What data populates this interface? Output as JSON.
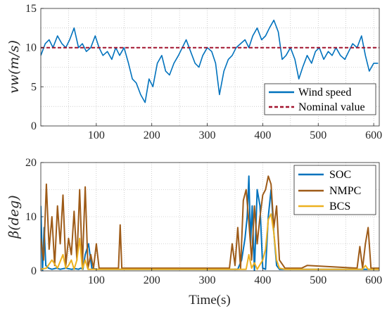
{
  "chart_data": [
    {
      "type": "line",
      "ylabel": "v_w(m/s)",
      "ylabel_text": "vw(m/s)",
      "xlabel": "",
      "xlim": [
        0,
        610
      ],
      "ylim": [
        0,
        15
      ],
      "xticks": [
        "100",
        "200",
        "300",
        "400",
        "500",
        "600"
      ],
      "yticks": [
        "0",
        "5",
        "10",
        "15"
      ],
      "grid": true,
      "legend_position": "bottom-right",
      "series": [
        {
          "name": "Wind speed",
          "color": "#0072BD",
          "style": "solid",
          "x": [
            0,
            8,
            15,
            22,
            30,
            38,
            45,
            52,
            60,
            68,
            75,
            82,
            90,
            98,
            105,
            112,
            120,
            128,
            135,
            142,
            150,
            158,
            165,
            172,
            180,
            188,
            195,
            202,
            210,
            218,
            225,
            232,
            240,
            248,
            255,
            262,
            270,
            278,
            285,
            292,
            300,
            308,
            315,
            322,
            330,
            338,
            345,
            352,
            360,
            368,
            375,
            382,
            390,
            398,
            405,
            412,
            420,
            428,
            435,
            442,
            450,
            458,
            465,
            472,
            480,
            488,
            495,
            502,
            510,
            518,
            525,
            532,
            540,
            548,
            555,
            562,
            570,
            578,
            585,
            592,
            600,
            608
          ],
          "y": [
            9,
            10.5,
            11,
            10,
            11.5,
            10.5,
            10,
            11,
            12.5,
            10,
            10.5,
            9.5,
            10,
            11.5,
            10,
            9,
            9.5,
            8.5,
            10,
            9,
            10,
            8,
            6,
            5.5,
            4,
            3,
            6,
            5,
            8,
            9,
            7,
            6.5,
            8,
            9,
            10,
            11,
            9.5,
            8,
            7.5,
            9,
            10,
            9.5,
            8,
            4,
            7,
            8.5,
            9,
            10,
            10.5,
            11,
            10,
            11.5,
            12.5,
            11,
            11.5,
            12.5,
            13.5,
            12,
            8.5,
            9,
            10,
            8.5,
            6,
            7.5,
            9,
            8,
            9.5,
            10,
            8.5,
            9.5,
            9,
            10,
            9,
            8.5,
            9.5,
            10.5,
            10,
            11.5,
            9,
            7,
            8,
            8
          ]
        },
        {
          "name": "Nominal value",
          "color": "#A2142F",
          "style": "dashed",
          "x": [
            0,
            610
          ],
          "y": [
            10,
            10
          ]
        }
      ]
    },
    {
      "type": "line",
      "ylabel": "β(deg)",
      "xlabel": "Time(s)",
      "xlim": [
        0,
        610
      ],
      "ylim": [
        0,
        20
      ],
      "xticks": [
        "100",
        "200",
        "300",
        "400",
        "500",
        "600"
      ],
      "yticks": [
        "0",
        "10",
        "20"
      ],
      "grid": true,
      "legend_position": "top-right",
      "series": [
        {
          "name": "SOC",
          "color": "#0072BD",
          "x": [
            0,
            3,
            6,
            9,
            14,
            20,
            28,
            35,
            45,
            55,
            62,
            68,
            72,
            76,
            80,
            86,
            92,
            100,
            110,
            140,
            145,
            150,
            200,
            300,
            355,
            362,
            368,
            372,
            375,
            378,
            381,
            385,
            390,
            395,
            400,
            405,
            410,
            415,
            420,
            425,
            430,
            440,
            480,
            570,
            590,
            610
          ],
          "y": [
            12,
            0,
            8,
            1,
            0.5,
            0.3,
            0.5,
            0.3,
            0.5,
            0.3,
            0.4,
            0.3,
            0.5,
            0.3,
            3,
            5,
            0.5,
            0.3,
            0.3,
            0.3,
            0.3,
            0.3,
            0.3,
            0.3,
            0.3,
            2,
            6,
            10,
            17.5,
            5,
            12,
            0,
            15,
            12,
            0.5,
            0.3,
            10,
            15,
            7,
            1,
            0.3,
            0.3,
            0.3,
            0.3,
            0.3,
            0.3
          ]
        },
        {
          "name": "NMPC",
          "color": "#9E5B18",
          "x": [
            0,
            5,
            10,
            15,
            20,
            25,
            30,
            35,
            40,
            45,
            50,
            55,
            60,
            65,
            70,
            75,
            80,
            85,
            90,
            95,
            100,
            105,
            110,
            115,
            120,
            130,
            140,
            143,
            146,
            150,
            200,
            300,
            340,
            345,
            350,
            355,
            360,
            365,
            370,
            375,
            380,
            385,
            390,
            395,
            400,
            405,
            410,
            415,
            420,
            425,
            430,
            440,
            470,
            480,
            570,
            575,
            580,
            585,
            590,
            595,
            600,
            610
          ],
          "y": [
            6,
            2,
            16,
            4,
            10,
            1,
            12,
            5,
            14,
            1,
            6,
            3,
            11,
            2,
            15,
            1,
            15.5,
            0.5,
            3,
            0.5,
            5,
            0.5,
            0.5,
            0.5,
            0.5,
            0.5,
            0.5,
            8.5,
            0.5,
            0.5,
            0.5,
            0.5,
            0.5,
            5,
            1,
            8,
            0.5,
            13,
            15,
            9,
            2,
            12,
            5,
            10,
            14,
            15,
            17.5,
            16,
            8,
            12,
            2,
            0.5,
            0.5,
            1,
            0.5,
            4.5,
            0.5,
            5,
            8,
            0.5,
            0.5,
            0.5
          ]
        },
        {
          "name": "BCS",
          "color": "#EDB120",
          "x": [
            0,
            10,
            20,
            30,
            40,
            45,
            50,
            55,
            60,
            65,
            70,
            75,
            80,
            85,
            90,
            100,
            200,
            300,
            370,
            375,
            380,
            385,
            390,
            400,
            405,
            410,
            415,
            420,
            425,
            430,
            440,
            500,
            580,
            585,
            590,
            610
          ],
          "y": [
            0.3,
            0.5,
            2,
            0.5,
            3,
            0.5,
            1,
            2,
            0.3,
            2,
            6,
            0.3,
            2,
            0.3,
            0.3,
            0.3,
            0.3,
            0.3,
            0.3,
            3,
            0.5,
            1.5,
            0.3,
            2,
            4,
            9.5,
            10.5,
            7,
            2,
            0.5,
            0.3,
            0.3,
            0.3,
            1,
            0.3,
            0.3
          ]
        }
      ]
    }
  ]
}
